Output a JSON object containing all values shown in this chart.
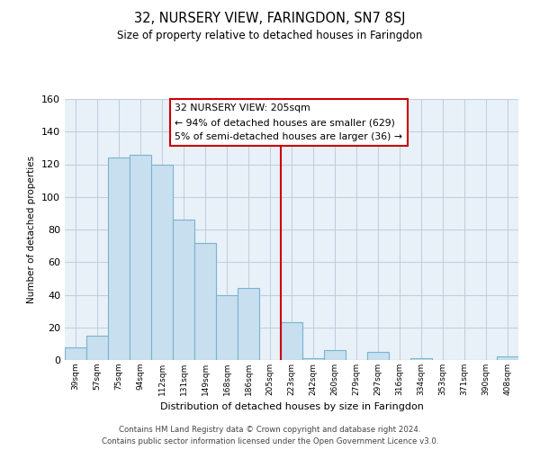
{
  "title": "32, NURSERY VIEW, FARINGDON, SN7 8SJ",
  "subtitle": "Size of property relative to detached houses in Faringdon",
  "xlabel": "Distribution of detached houses by size in Faringdon",
  "ylabel": "Number of detached properties",
  "bar_labels": [
    "39sqm",
    "57sqm",
    "75sqm",
    "94sqm",
    "112sqm",
    "131sqm",
    "149sqm",
    "168sqm",
    "186sqm",
    "205sqm",
    "223sqm",
    "242sqm",
    "260sqm",
    "279sqm",
    "297sqm",
    "316sqm",
    "334sqm",
    "353sqm",
    "371sqm",
    "390sqm",
    "408sqm"
  ],
  "bar_values": [
    8,
    15,
    124,
    126,
    120,
    86,
    72,
    40,
    44,
    0,
    23,
    1,
    6,
    0,
    5,
    0,
    1,
    0,
    0,
    0,
    2
  ],
  "bar_color": "#c8dff0",
  "bar_edge_color": "#7ab3cf",
  "vline_color": "#cc0000",
  "annotation_title": "32 NURSERY VIEW: 205sqm",
  "annotation_line1": "← 94% of detached houses are smaller (629)",
  "annotation_line2": "5% of semi-detached houses are larger (36) →",
  "annotation_box_color": "#ffffff",
  "annotation_box_edge_color": "#cc0000",
  "plot_bg_color": "#e8f0f8",
  "ylim": [
    0,
    160
  ],
  "yticks": [
    0,
    20,
    40,
    60,
    80,
    100,
    120,
    140,
    160
  ],
  "footer_line1": "Contains HM Land Registry data © Crown copyright and database right 2024.",
  "footer_line2": "Contains public sector information licensed under the Open Government Licence v3.0.",
  "background_color": "#ffffff",
  "grid_color": "#b8c8d8"
}
